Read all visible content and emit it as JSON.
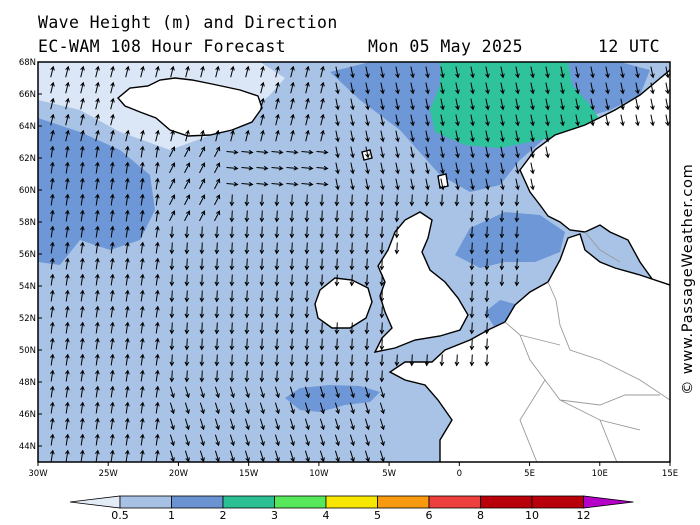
{
  "header": {
    "title": "Wave Height (m) and Direction",
    "model": "EC-WAM 108 Hour Forecast",
    "date": "Mon 05 May 2025",
    "time": "12 UTC"
  },
  "credit": "© www.PassageWeather.com",
  "map": {
    "lat_labels": [
      "68N",
      "66N",
      "64N",
      "62N",
      "60N",
      "58N",
      "56N",
      "54N",
      "52N",
      "50N",
      "48N",
      "46N",
      "44N"
    ],
    "lon_labels": [
      "30W",
      "25W",
      "20W",
      "15W",
      "10W",
      "5W",
      "0",
      "5E",
      "10E",
      "15E"
    ],
    "colors": {
      "sea_low": "#dbe6f6",
      "sea_0_5_1": "#a8c3e6",
      "sea_1_2": "#6d97d6",
      "sea_3_4": "#2ec39a",
      "land": "#ffffff",
      "coast": "#000000",
      "border": "#9a9a9a"
    }
  },
  "colorbar": {
    "labels": [
      "0.5",
      "1",
      "2",
      "3",
      "4",
      "5",
      "6",
      "8",
      "10",
      "12"
    ],
    "colors": [
      "#e3ebf7",
      "#a7c1e5",
      "#6b93d2",
      "#2cbf94",
      "#56e85a",
      "#f6e600",
      "#f79a10",
      "#ee3f3f",
      "#b9000a",
      "#b400c8"
    ]
  }
}
